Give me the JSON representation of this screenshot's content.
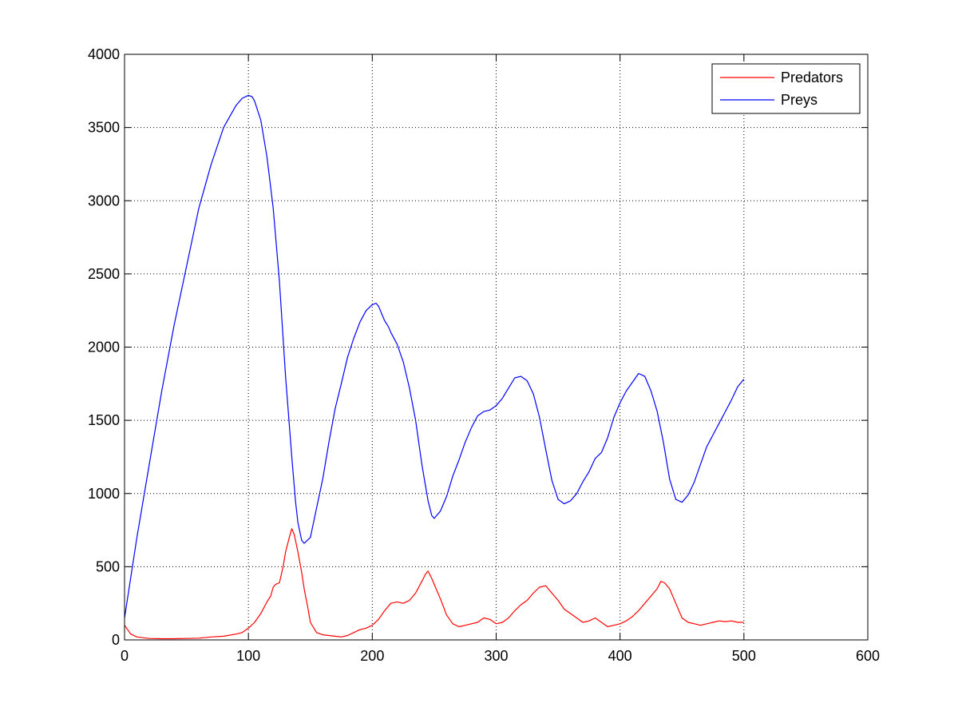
{
  "chart_data": {
    "type": "line",
    "title": "",
    "xlabel": "",
    "ylabel": "",
    "xlim": [
      0,
      600
    ],
    "ylim": [
      0,
      4000
    ],
    "xticks": [
      0,
      100,
      200,
      300,
      400,
      500,
      600
    ],
    "yticks": [
      0,
      500,
      1000,
      1500,
      2000,
      2500,
      3000,
      3500,
      4000
    ],
    "xtick_labels": [
      "0",
      "100",
      "200",
      "300",
      "400",
      "500",
      "600"
    ],
    "ytick_labels": [
      "0",
      "500",
      "1000",
      "1500",
      "2000",
      "2500",
      "3000",
      "3500",
      "4000"
    ],
    "grid": true,
    "legend_position": "top-right",
    "series": [
      {
        "name": "Predators",
        "color": "#ff0000",
        "x": [
          0,
          5,
          10,
          20,
          30,
          40,
          50,
          60,
          70,
          80,
          90,
          95,
          100,
          105,
          110,
          115,
          118,
          120,
          122,
          125,
          128,
          130,
          133,
          135,
          137,
          140,
          143,
          145,
          148,
          150,
          155,
          160,
          165,
          170,
          175,
          180,
          185,
          190,
          195,
          200,
          205,
          210,
          215,
          220,
          225,
          230,
          235,
          240,
          243,
          245,
          248,
          250,
          255,
          260,
          265,
          270,
          275,
          280,
          285,
          290,
          295,
          300,
          305,
          310,
          315,
          320,
          325,
          330,
          335,
          340,
          345,
          350,
          355,
          360,
          365,
          370,
          375,
          380,
          385,
          390,
          395,
          400,
          405,
          410,
          415,
          420,
          425,
          430,
          433,
          436,
          440,
          445,
          450,
          455,
          460,
          465,
          470,
          475,
          480,
          485,
          490,
          495,
          500
        ],
        "y": [
          100,
          40,
          20,
          10,
          8,
          8,
          10,
          12,
          20,
          25,
          40,
          50,
          80,
          120,
          180,
          260,
          300,
          360,
          380,
          390,
          500,
          600,
          700,
          760,
          720,
          600,
          460,
          350,
          220,
          120,
          50,
          35,
          30,
          25,
          20,
          30,
          50,
          70,
          80,
          100,
          140,
          200,
          250,
          260,
          250,
          270,
          320,
          400,
          450,
          470,
          420,
          380,
          280,
          170,
          110,
          90,
          100,
          110,
          120,
          150,
          140,
          110,
          120,
          150,
          200,
          240,
          270,
          320,
          360,
          370,
          320,
          270,
          210,
          180,
          150,
          120,
          130,
          150,
          120,
          90,
          100,
          110,
          130,
          160,
          200,
          250,
          300,
          350,
          400,
          390,
          350,
          250,
          150,
          120,
          110,
          100,
          110,
          120,
          130,
          125,
          130,
          120,
          120
        ]
      },
      {
        "name": "Preys",
        "color": "#0000ff",
        "x": [
          0,
          10,
          20,
          30,
          40,
          50,
          60,
          70,
          80,
          90,
          95,
          100,
          103,
          105,
          110,
          115,
          120,
          125,
          130,
          135,
          138,
          140,
          143,
          145,
          150,
          155,
          160,
          165,
          170,
          175,
          180,
          185,
          190,
          195,
          200,
          203,
          205,
          210,
          213,
          215,
          220,
          225,
          230,
          235,
          240,
          245,
          248,
          250,
          252,
          255,
          260,
          265,
          270,
          275,
          280,
          285,
          290,
          295,
          300,
          305,
          310,
          315,
          320,
          325,
          330,
          335,
          340,
          345,
          350,
          355,
          360,
          365,
          370,
          375,
          380,
          385,
          390,
          395,
          400,
          405,
          410,
          415,
          420,
          425,
          430,
          435,
          440,
          445,
          450,
          455,
          460,
          465,
          470,
          475,
          480,
          485,
          490,
          495,
          500
        ],
        "y": [
          150,
          700,
          1200,
          1700,
          2150,
          2550,
          2950,
          3250,
          3500,
          3650,
          3700,
          3720,
          3710,
          3680,
          3550,
          3300,
          2950,
          2450,
          1800,
          1250,
          950,
          800,
          680,
          660,
          700,
          900,
          1100,
          1350,
          1580,
          1750,
          1930,
          2060,
          2170,
          2250,
          2290,
          2300,
          2280,
          2180,
          2140,
          2100,
          2020,
          1900,
          1720,
          1500,
          1200,
          950,
          850,
          830,
          850,
          880,
          980,
          1120,
          1230,
          1350,
          1450,
          1530,
          1560,
          1570,
          1600,
          1650,
          1720,
          1790,
          1800,
          1770,
          1680,
          1520,
          1300,
          1090,
          960,
          930,
          950,
          1000,
          1080,
          1150,
          1240,
          1280,
          1380,
          1520,
          1620,
          1700,
          1760,
          1820,
          1800,
          1700,
          1560,
          1350,
          1100,
          960,
          940,
          990,
          1080,
          1200,
          1320,
          1400,
          1480,
          1560,
          1640,
          1730,
          1780
        ]
      }
    ]
  }
}
